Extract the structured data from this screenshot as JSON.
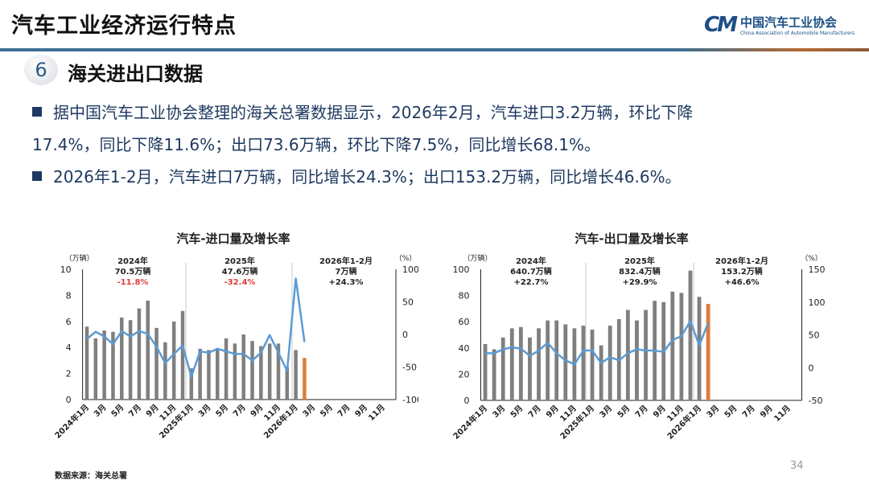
{
  "header": {
    "title": "汽车工业经济运行特点",
    "logo": {
      "mark": "CM",
      "name_cn": "中国汽车工业协会",
      "name_en": "China Association of Automobile Manufacturers"
    },
    "section_number": "6",
    "section_title": "海关进出口数据"
  },
  "body": {
    "paragraphs": [
      {
        "line1": "据中国汽车工业协会整理的海关总署数据显示，2026年2月，汽车进口3.2万辆，环比下降",
        "line2": "17.4%，同比下降11.6%；出口73.6万辆，环比下降7.5%，同比增长68.1%。"
      },
      {
        "line1": "2026年1-2月，汽车进口7万辆，同比增长24.3%；出口153.2万辆，同比增长46.6%。"
      }
    ]
  },
  "footer": {
    "source": "数据来源：海关总署",
    "page": "34"
  },
  "colors": {
    "bar": "#7f7f7f",
    "bar_highlight": "#e07b39",
    "line": "#5b9bd5",
    "negative_text": "#e03c3c",
    "text": "#1f3a60"
  },
  "chart_data": [
    {
      "type": "bar+line",
      "title": "汽车-进口量及增长率",
      "left_unit": "（万辆）",
      "right_unit": "（%）",
      "ylim": [
        0,
        10
      ],
      "yticks": [
        "0",
        "2",
        "4",
        "6",
        "8",
        "10"
      ],
      "y2lim": [
        -100,
        100
      ],
      "y2ticks": [
        "-100",
        "-50",
        "0",
        "50",
        "100"
      ],
      "x_tick_labels": [
        "2024年1月",
        "3月",
        "5月",
        "7月",
        "9月",
        "11月",
        "2025年1月",
        "3月",
        "5月",
        "7月",
        "9月",
        "11月",
        "2026年1月",
        "3月",
        "5月",
        "7月",
        "9月",
        "11月"
      ],
      "categories_count": 36,
      "bar_values": [
        5.6,
        4.7,
        5.3,
        5.2,
        6.3,
        6.1,
        7.0,
        7.6,
        5.5,
        4.4,
        6.0,
        6.8,
        2.4,
        3.9,
        3.8,
        3.9,
        4.7,
        4.3,
        5.0,
        4.5,
        4.1,
        4.3,
        4.3,
        2.5,
        3.8,
        3.2
      ],
      "highlight_index": 25,
      "line_values": [
        -7,
        4,
        -3,
        -15,
        5,
        -3,
        5,
        1,
        -19,
        -44,
        -30,
        -17,
        -65,
        -26,
        -28,
        -22,
        -26,
        -30,
        -30,
        -40,
        -28,
        -1,
        -28,
        -56,
        86,
        -11.6
      ],
      "annotations": [
        {
          "year": "2024年",
          "total": "70.5万辆",
          "growth": "-11.8%",
          "negative": true
        },
        {
          "year": "2025年",
          "total": "47.6万辆",
          "growth": "-32.4%",
          "negative": true
        },
        {
          "year": "2026年1-2月",
          "total": "7万辆",
          "growth": "+24.3%",
          "negative": false
        }
      ]
    },
    {
      "type": "bar+line",
      "title": "汽车-出口量及增长率",
      "left_unit": "（万辆）",
      "right_unit": "（%）",
      "ylim": [
        0,
        100
      ],
      "yticks": [
        "0",
        "20",
        "40",
        "60",
        "80",
        "100"
      ],
      "y2lim": [
        -50,
        150
      ],
      "y2ticks": [
        "-50",
        "0",
        "50",
        "100",
        "150"
      ],
      "x_tick_labels": [
        "2024年1月",
        "3月",
        "5月",
        "7月",
        "9月",
        "11月",
        "2025年1月",
        "3月",
        "5月",
        "7月",
        "9月",
        "11月",
        "2026年1月",
        "3月",
        "5月",
        "7月",
        "9月",
        "11月"
      ],
      "categories_count": 36,
      "bar_values": [
        43,
        39,
        48,
        55,
        56,
        48,
        55,
        61,
        61,
        58,
        55,
        57,
        54,
        42,
        57,
        62,
        69,
        61,
        69,
        76,
        75,
        83,
        82,
        99,
        79,
        73.6
      ],
      "highlight_index": 25,
      "line_values": [
        22,
        22,
        28,
        31,
        29,
        18,
        26,
        38,
        22,
        11,
        5,
        26,
        26,
        7,
        16,
        11,
        22,
        28,
        26,
        26,
        24,
        42,
        48,
        71,
        34,
        68.1
      ],
      "annotations": [
        {
          "year": "2024年",
          "total": "640.7万辆",
          "growth": "+22.7%",
          "negative": false
        },
        {
          "year": "2025年",
          "total": "832.4万辆",
          "growth": "+29.9%",
          "negative": false
        },
        {
          "year": "2026年1-2月",
          "total": "153.2万辆",
          "growth": "+46.6%",
          "negative": false
        }
      ]
    }
  ]
}
